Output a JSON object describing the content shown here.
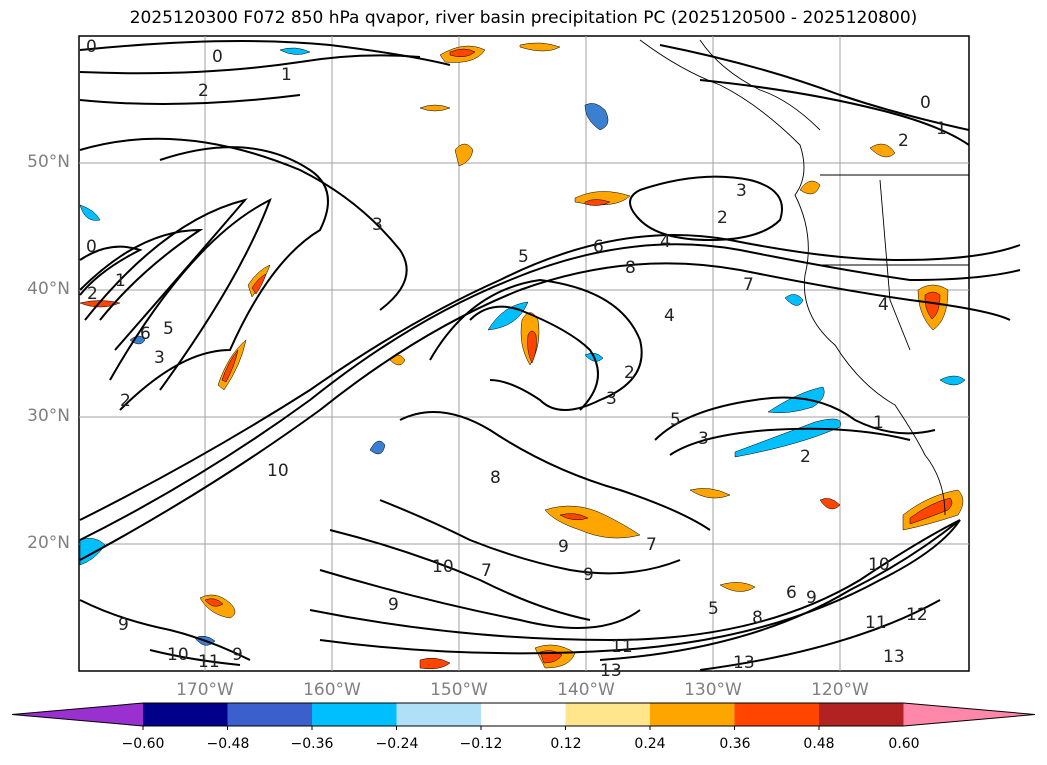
{
  "title": "2025120300 F072 850 hPa qvapor, river basin precipitation PC (2025120500 - 2025120800)",
  "map": {
    "lat_labels": [
      "50°N",
      "40°N",
      "30°N",
      "20°N"
    ],
    "lon_labels": [
      "170°W",
      "160°W",
      "150°W",
      "140°W",
      "130°W",
      "120°W"
    ],
    "contour_labels": [
      "0",
      "1",
      "2",
      "3",
      "4",
      "5",
      "6",
      "7",
      "8",
      "9",
      "10",
      "11",
      "12",
      "13"
    ]
  },
  "colorbar": {
    "ticks": [
      "−0.60",
      "−0.48",
      "−0.36",
      "−0.24",
      "−0.12",
      "0.12",
      "0.24",
      "0.36",
      "0.48",
      "0.60"
    ],
    "colors": [
      "#9b30d0",
      "#00008b",
      "#3b5fcd",
      "#00bfff",
      "#b0e0f8",
      "#ffffff",
      "#ffe68c",
      "#ffa500",
      "#ff4500",
      "#b22222",
      "#ff88aa"
    ]
  }
}
